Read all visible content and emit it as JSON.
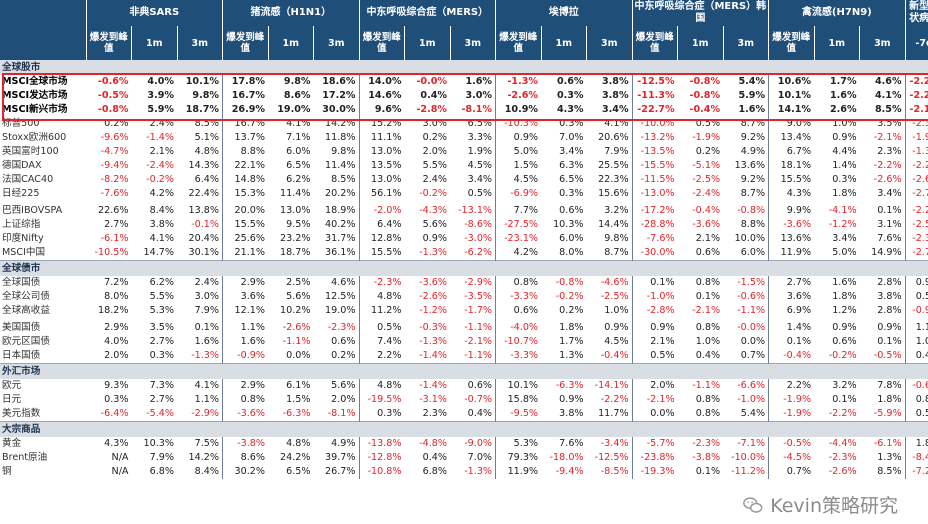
{
  "header": {
    "groups": [
      "非典SARS",
      "猪流感（H1N1）",
      "中东呼吸综合症（MERS）",
      "埃博拉",
      "中东呼吸综合症（MERS）韩国",
      "禽流感(H7N9)",
      "新型冠状病毒"
    ],
    "sub": [
      "爆发到峰值",
      "1m",
      "3m"
    ],
    "last_sub": "-7d"
  },
  "sections": [
    {
      "title": "全球股市",
      "rows": [
        {
          "name": "MSCI全球市场",
          "hl": true,
          "v": [
            "-0.6%",
            "4.0%",
            "10.1%",
            "17.8%",
            "9.8%",
            "18.6%",
            "14.0%",
            "-0.0%",
            "1.6%",
            "-1.3%",
            "0.6%",
            "3.8%",
            "-12.5%",
            "-0.8%",
            "5.4%",
            "10.6%",
            "1.7%",
            "4.6%",
            "-2.2%"
          ]
        },
        {
          "name": "MSCI发达市场",
          "hl": true,
          "v": [
            "-0.5%",
            "3.9%",
            "9.8%",
            "16.7%",
            "8.6%",
            "17.2%",
            "14.6%",
            "0.4%",
            "3.0%",
            "-2.6%",
            "0.3%",
            "3.8%",
            "-11.3%",
            "-0.8%",
            "5.9%",
            "10.1%",
            "1.6%",
            "4.1%",
            "-2.2%"
          ]
        },
        {
          "name": "MSCI新兴市场",
          "hl": true,
          "v": [
            "-0.8%",
            "5.9%",
            "18.7%",
            "26.9%",
            "19.0%",
            "30.0%",
            "9.6%",
            "-2.8%",
            "-8.1%",
            "10.9%",
            "4.3%",
            "3.4%",
            "-22.7%",
            "-0.4%",
            "1.6%",
            "14.1%",
            "2.6%",
            "8.5%",
            "-2.1%"
          ]
        },
        {
          "name": "标普500",
          "v": [
            "0.2%",
            "2.4%",
            "8.5%",
            "16.7%",
            "4.1%",
            "14.2%",
            "15.2%",
            "3.0%",
            "6.5%",
            "-10.3%",
            "0.3%",
            "4.1%",
            "-10.0%",
            "0.5%",
            "8.7%",
            "9.0%",
            "1.0%",
            "3.5%",
            "-2.3%"
          ]
        },
        {
          "name": "Stoxx欧洲600",
          "v": [
            "-9.6%",
            "-1.4%",
            "5.1%",
            "13.7%",
            "7.1%",
            "11.8%",
            "11.1%",
            "0.2%",
            "3.3%",
            "0.9%",
            "7.0%",
            "20.6%",
            "-13.2%",
            "-1.9%",
            "9.2%",
            "13.4%",
            "0.9%",
            "-2.1%",
            "-1.9%"
          ]
        },
        {
          "name": "英国富时100",
          "v": [
            "-4.7%",
            "2.1%",
            "4.8%",
            "8.8%",
            "6.0%",
            "9.8%",
            "13.0%",
            "2.0%",
            "1.9%",
            "5.0%",
            "3.4%",
            "7.9%",
            "-13.5%",
            "0.2%",
            "4.9%",
            "6.7%",
            "4.4%",
            "2.3%",
            "-1.3%"
          ]
        },
        {
          "name": "德国DAX",
          "v": [
            "-9.4%",
            "-2.4%",
            "14.3%",
            "22.1%",
            "6.5%",
            "11.4%",
            "13.5%",
            "5.5%",
            "4.5%",
            "1.5%",
            "6.3%",
            "25.5%",
            "-15.5%",
            "-5.1%",
            "13.6%",
            "18.1%",
            "1.4%",
            "-2.2%",
            "-2.2%"
          ]
        },
        {
          "name": "法国CAC40",
          "v": [
            "-8.2%",
            "-0.2%",
            "6.4%",
            "14.8%",
            "6.2%",
            "8.5%",
            "13.0%",
            "2.4%",
            "3.4%",
            "4.5%",
            "6.5%",
            "22.3%",
            "-11.5%",
            "-2.5%",
            "9.2%",
            "15.5%",
            "0.3%",
            "-2.6%",
            "-2.6%"
          ]
        },
        {
          "name": "日经225",
          "v": [
            "-7.6%",
            "4.2%",
            "22.4%",
            "15.3%",
            "11.4%",
            "20.2%",
            "56.1%",
            "-0.2%",
            "0.5%",
            "-6.9%",
            "0.3%",
            "15.6%",
            "-13.0%",
            "-2.4%",
            "8.7%",
            "4.3%",
            "1.8%",
            "3.4%",
            "-2.7%"
          ]
        },
        {
          "name": "巴西IBOVSPA",
          "sp": true,
          "v": [
            "22.6%",
            "8.4%",
            "13.8%",
            "20.0%",
            "13.0%",
            "18.9%",
            "-2.0%",
            "-4.3%",
            "-13.1%",
            "7.7%",
            "0.6%",
            "3.2%",
            "-17.2%",
            "-0.4%",
            "-0.8%",
            "9.9%",
            "-4.1%",
            "0.1%",
            "-2.2%"
          ]
        },
        {
          "name": "上证综指",
          "v": [
            "2.7%",
            "3.8%",
            "-0.1%",
            "15.5%",
            "9.5%",
            "40.2%",
            "6.4%",
            "5.6%",
            "-8.6%",
            "-27.5%",
            "10.3%",
            "14.4%",
            "-28.8%",
            "-3.6%",
            "8.8%",
            "-3.6%",
            "-1.2%",
            "3.1%",
            "-2.5%"
          ]
        },
        {
          "name": "印度Nifty",
          "v": [
            "-6.1%",
            "4.1%",
            "20.4%",
            "25.6%",
            "23.2%",
            "31.7%",
            "12.8%",
            "0.9%",
            "-3.0%",
            "-23.1%",
            "6.0%",
            "9.8%",
            "-7.6%",
            "2.1%",
            "10.0%",
            "13.6%",
            "3.4%",
            "7.6%",
            "-2.3%"
          ]
        },
        {
          "name": "MSCI中国",
          "v": [
            "-10.5%",
            "14.7%",
            "30.1%",
            "21.1%",
            "18.7%",
            "36.1%",
            "15.5%",
            "-1.3%",
            "-6.2%",
            "4.2%",
            "8.0%",
            "8.7%",
            "-30.0%",
            "0.6%",
            "6.0%",
            "11.9%",
            "5.0%",
            "14.9%",
            "-2.7%"
          ]
        }
      ]
    },
    {
      "title": "全球债市",
      "rows": [
        {
          "name": "全球国债",
          "v": [
            "7.2%",
            "6.2%",
            "2.4%",
            "2.9%",
            "2.5%",
            "4.6%",
            "-2.3%",
            "-3.6%",
            "-2.9%",
            "0.8%",
            "-0.8%",
            "-4.6%",
            "0.1%",
            "0.8%",
            "-1.5%",
            "2.7%",
            "1.6%",
            "2.8%",
            "0.9%"
          ]
        },
        {
          "name": "全球公司债",
          "v": [
            "8.0%",
            "5.5%",
            "3.0%",
            "3.6%",
            "5.6%",
            "12.5%",
            "4.8%",
            "-2.6%",
            "-3.5%",
            "-3.3%",
            "-0.2%",
            "-2.5%",
            "-1.0%",
            "0.1%",
            "-0.6%",
            "3.6%",
            "1.8%",
            "3.8%",
            "0.5%"
          ]
        },
        {
          "name": "全球高收益",
          "v": [
            "18.2%",
            "5.3%",
            "7.9%",
            "12.1%",
            "10.2%",
            "19.0%",
            "11.2%",
            "-1.2%",
            "-1.7%",
            "0.6%",
            "0.2%",
            "1.0%",
            "-2.8%",
            "-2.1%",
            "-1.1%",
            "6.9%",
            "1.2%",
            "2.8%",
            "-0.9%"
          ]
        },
        {
          "name": "美国国债",
          "sp": true,
          "v": [
            "2.9%",
            "3.5%",
            "0.1%",
            "1.1%",
            "-2.6%",
            "-2.3%",
            "0.5%",
            "-0.3%",
            "-1.1%",
            "-4.0%",
            "1.8%",
            "0.9%",
            "0.9%",
            "0.8%",
            "-0.0%",
            "1.4%",
            "0.9%",
            "0.9%",
            "1.1%"
          ]
        },
        {
          "name": "欧元区国债",
          "v": [
            "4.0%",
            "2.7%",
            "1.6%",
            "1.6%",
            "-1.1%",
            "0.6%",
            "7.4%",
            "-1.3%",
            "-2.1%",
            "-10.7%",
            "1.7%",
            "4.5%",
            "2.1%",
            "1.0%",
            "0.0%",
            "0.1%",
            "0.6%",
            "0.1%",
            "1.0%"
          ]
        },
        {
          "name": "日本国债",
          "v": [
            "2.0%",
            "0.3%",
            "-1.3%",
            "-0.9%",
            "0.0%",
            "0.2%",
            "2.2%",
            "-1.4%",
            "-1.1%",
            "-3.3%",
            "1.3%",
            "-0.4%",
            "0.5%",
            "0.4%",
            "0.7%",
            "-0.4%",
            "-0.2%",
            "-0.5%",
            "0.4%"
          ]
        }
      ]
    },
    {
      "title": "外汇市场",
      "rows": [
        {
          "name": "欧元",
          "v": [
            "9.3%",
            "7.3%",
            "4.1%",
            "2.9%",
            "6.1%",
            "5.6%",
            "4.8%",
            "-1.4%",
            "0.6%",
            "10.1%",
            "-6.3%",
            "-14.1%",
            "2.0%",
            "-1.1%",
            "-6.6%",
            "2.2%",
            "3.2%",
            "7.8%",
            "-0.6%"
          ]
        },
        {
          "name": "日元",
          "v": [
            "0.3%",
            "2.7%",
            "1.1%",
            "0.8%",
            "1.5%",
            "2.0%",
            "-19.5%",
            "-3.1%",
            "-0.7%",
            "15.8%",
            "0.9%",
            "-2.2%",
            "-2.1%",
            "0.8%",
            "-1.0%",
            "-1.9%",
            "0.1%",
            "1.8%",
            "0.8%"
          ]
        },
        {
          "name": "美元指数",
          "v": [
            "-6.4%",
            "-5.4%",
            "-2.9%",
            "-3.6%",
            "-6.3%",
            "-8.1%",
            "0.3%",
            "2.3%",
            "0.4%",
            "-9.5%",
            "3.8%",
            "11.7%",
            "0.0%",
            "0.8%",
            "5.4%",
            "-1.9%",
            "-2.2%",
            "-5.9%",
            "0.5%"
          ]
        }
      ]
    },
    {
      "title": "大宗商品",
      "rows": [
        {
          "name": "黄金",
          "v": [
            "4.3%",
            "10.3%",
            "7.5%",
            "-3.8%",
            "4.8%",
            "4.9%",
            "-13.8%",
            "-4.8%",
            "-9.0%",
            "5.3%",
            "7.6%",
            "-3.4%",
            "-5.7%",
            "-2.3%",
            "-7.1%",
            "-0.5%",
            "-4.4%",
            "-6.1%",
            "1.8%"
          ]
        },
        {
          "name": "Brent原油",
          "v": [
            "N/A",
            "7.9%",
            "14.2%",
            "8.6%",
            "24.2%",
            "39.7%",
            "-12.8%",
            "0.4%",
            "7.0%",
            "79.3%",
            "-18.0%",
            "-12.5%",
            "-23.8%",
            "-3.8%",
            "-10.0%",
            "-4.5%",
            "-2.3%",
            "1.3%",
            "-8.4%"
          ]
        },
        {
          "name": "铜",
          "v": [
            "N/A",
            "6.8%",
            "8.4%",
            "30.2%",
            "6.5%",
            "26.7%",
            "-10.8%",
            "6.8%",
            "-1.3%",
            "11.9%",
            "-9.4%",
            "-8.5%",
            "-19.3%",
            "0.1%",
            "-11.2%",
            "0.7%",
            "-2.6%",
            "8.5%",
            "-7.2%"
          ]
        }
      ]
    }
  ],
  "watermark": "Kevin策略研究"
}
